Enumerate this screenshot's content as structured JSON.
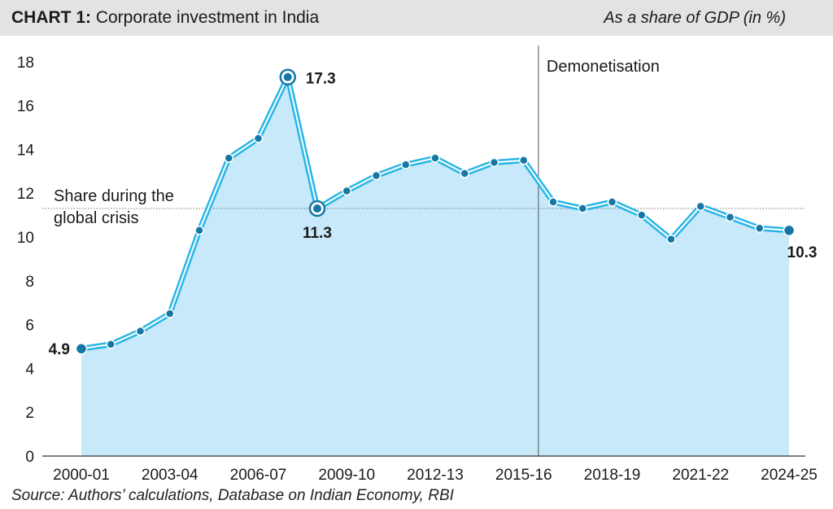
{
  "header": {
    "title_bold": "CHART 1:",
    "title": " Corporate investment in India",
    "subtitle": "As a share of GDP (in %)"
  },
  "source": "Source: Authors’ calculations, Database on Indian Economy, RBI",
  "colors": {
    "line": "#29b6e6",
    "area": "#c7e9f9",
    "marker": "#1578a4",
    "header_bg": "#e3e3e3"
  },
  "chart_data": {
    "type": "area",
    "title": "Corporate investment in India",
    "ylabel": "As a share of GDP (in %)",
    "ylim": [
      0,
      18
    ],
    "yticks": [
      0,
      2,
      4,
      6,
      8,
      10,
      12,
      14,
      16,
      18
    ],
    "grid": false,
    "categories": [
      "2000-01",
      "2001-02",
      "2002-03",
      "2003-04",
      "2004-05",
      "2005-06",
      "2006-07",
      "2007-08",
      "2008-09",
      "2009-10",
      "2010-11",
      "2011-12",
      "2012-13",
      "2013-14",
      "2014-15",
      "2015-16",
      "2016-17",
      "2017-18",
      "2018-19",
      "2019-20",
      "2020-21",
      "2021-22",
      "2022-23",
      "2023-24",
      "2024-25"
    ],
    "xtick_labels": [
      "2000-01",
      "2003-04",
      "2006-07",
      "2009-10",
      "2012-13",
      "2015-16",
      "2018-19",
      "2021-22",
      "2024-25"
    ],
    "series": [
      {
        "values": [
          4.9,
          5.1,
          5.7,
          6.5,
          10.3,
          13.6,
          14.5,
          17.3,
          11.3,
          12.1,
          12.8,
          13.3,
          13.6,
          12.9,
          13.4,
          13.5,
          11.6,
          11.3,
          11.6,
          11.0,
          9.9,
          11.4,
          10.9,
          10.4,
          10.3
        ]
      }
    ],
    "reference_line": {
      "value": 11.3,
      "label_line1": "Share during the",
      "label_line2": "global crisis"
    },
    "event_marker": {
      "after_category": "2015-16",
      "label": "Demonetisation"
    },
    "data_labels": [
      {
        "category": "2000-01",
        "text": "4.9"
      },
      {
        "category": "2007-08",
        "text": "17.3"
      },
      {
        "category": "2008-09",
        "text": "11.3"
      },
      {
        "category": "2024-25",
        "text": "10.3"
      }
    ]
  }
}
